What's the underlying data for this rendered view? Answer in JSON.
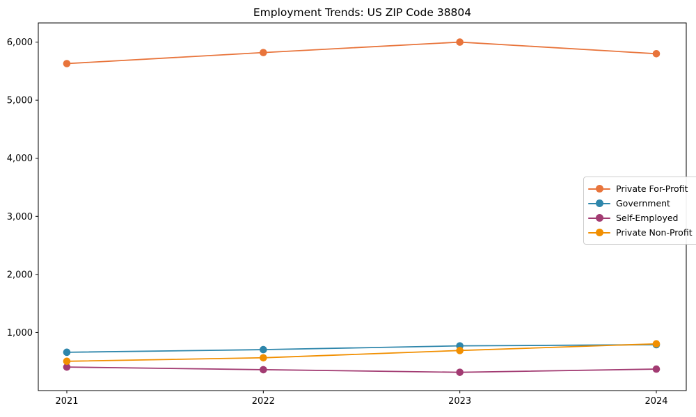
{
  "title": "Employment Trends: US ZIP Code 38804",
  "chart_data": {
    "type": "line",
    "title": "Employment Trends: US ZIP Code 38804",
    "categories": [
      "2021",
      "2022",
      "2023",
      "2024"
    ],
    "series": [
      {
        "name": "Private For-Profit",
        "color": "#E8743B",
        "values": [
          5630,
          5820,
          6000,
          5800
        ]
      },
      {
        "name": "Government",
        "color": "#2E86AB",
        "values": [
          660,
          705,
          770,
          790
        ]
      },
      {
        "name": "Self-Employed",
        "color": "#A23B72",
        "values": [
          405,
          360,
          315,
          370
        ]
      },
      {
        "name": "Private Non-Profit",
        "color": "#F18F01",
        "values": [
          505,
          565,
          690,
          805
        ]
      }
    ],
    "ylim": [
      0,
      6330
    ],
    "yticks": [
      1000,
      2000,
      3000,
      4000,
      5000,
      6000
    ],
    "ytick_labels": [
      "1,000",
      "2,000",
      "3,000",
      "4,000",
      "5,000",
      "6,000"
    ],
    "grid": false,
    "legend_position": "center-right",
    "marker": "circle",
    "axis_color": "#000000"
  }
}
